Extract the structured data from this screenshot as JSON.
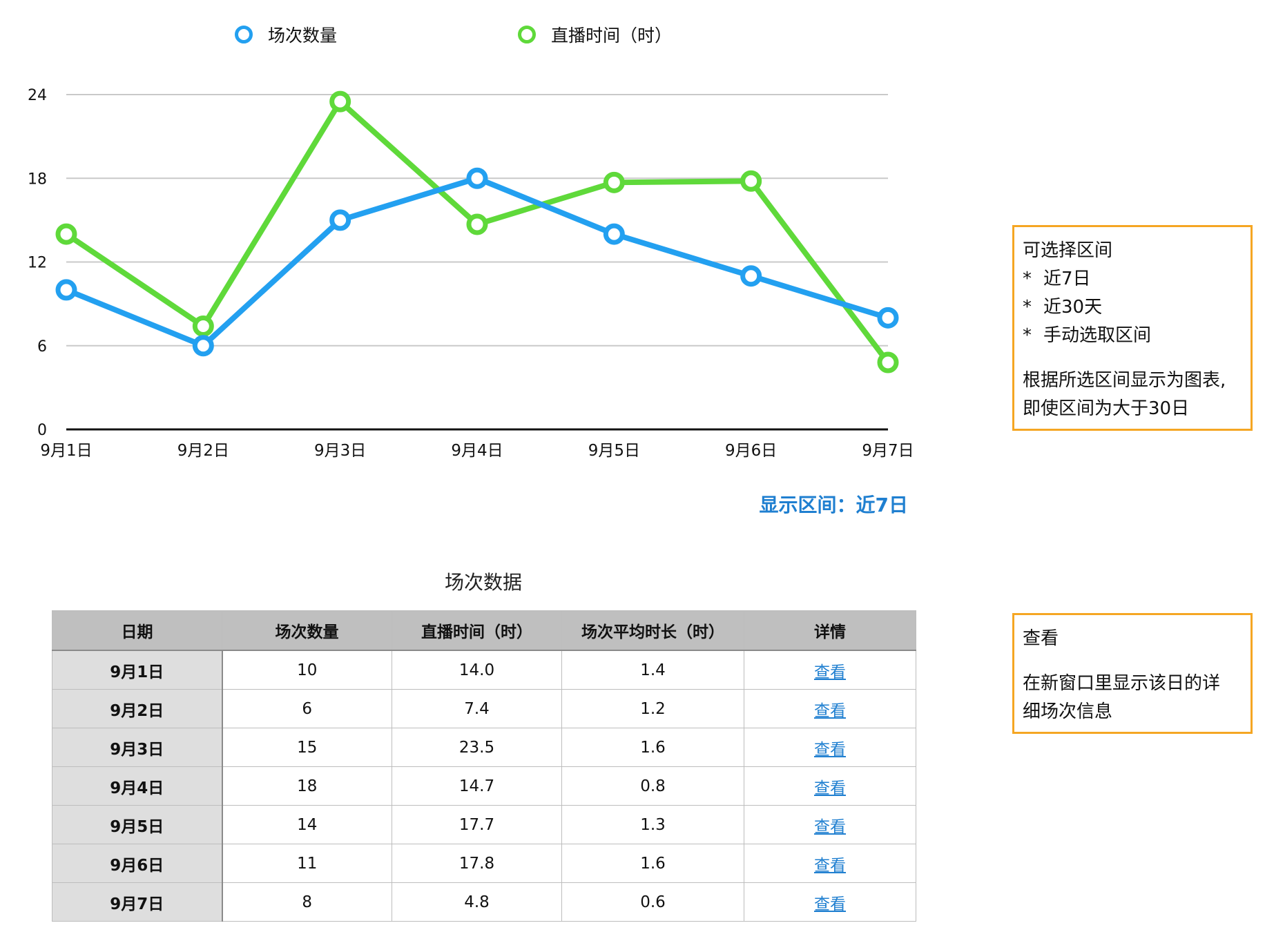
{
  "chart_data": {
    "type": "line",
    "categories": [
      "9月1日",
      "9月2日",
      "9月3日",
      "9月4日",
      "9月5日",
      "9月6日",
      "9月7日"
    ],
    "series": [
      {
        "name": "场次数量",
        "color": "#23a0f0",
        "values": [
          10,
          6,
          15,
          18,
          14,
          11,
          8
        ]
      },
      {
        "name": "直播时间（时）",
        "color": "#5fd93a",
        "values": [
          14.0,
          7.4,
          23.5,
          14.7,
          17.7,
          17.8,
          4.8
        ]
      }
    ],
    "y_ticks": [
      "0",
      "6",
      "12",
      "18",
      "24"
    ],
    "ylim": [
      0,
      24
    ],
    "grid": true,
    "legend_position": "top"
  },
  "range_label": "显示区间：近7日",
  "table": {
    "title": "场次数据",
    "headers": [
      "日期",
      "场次数量",
      "直播时间（时）",
      "场次平均时长（时）",
      "详情"
    ],
    "rows": [
      [
        "9月1日",
        "10",
        "14.0",
        "1.4",
        "查看"
      ],
      [
        "9月2日",
        "6",
        "7.4",
        "1.2",
        "查看"
      ],
      [
        "9月3日",
        "15",
        "23.5",
        "1.6",
        "查看"
      ],
      [
        "9月4日",
        "18",
        "14.7",
        "0.8",
        "查看"
      ],
      [
        "9月5日",
        "14",
        "17.7",
        "1.3",
        "查看"
      ],
      [
        "9月6日",
        "11",
        "17.8",
        "1.6",
        "查看"
      ],
      [
        "9月7日",
        "8",
        "4.8",
        "0.6",
        "查看"
      ]
    ]
  },
  "notes": {
    "range": {
      "title": "可选择区间",
      "bullet_symbol": "*",
      "items": [
        "近7日",
        "近30天",
        "手动选取区间"
      ],
      "text_line1": "根据所选区间显示为图表,",
      "text_line2": "即使区间为大于30日"
    },
    "view": {
      "title": "查看",
      "text_line1": "在新窗口里显示该日的详",
      "text_line2": "细场次信息"
    }
  },
  "colors": {
    "accent_blue": "#1f7fd0",
    "note_border": "#f5a623",
    "header_bg": "#bfbfbf",
    "date_bg": "#dedede"
  }
}
